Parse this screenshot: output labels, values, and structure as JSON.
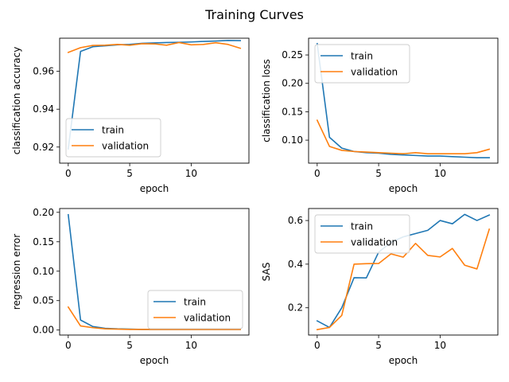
{
  "figure": {
    "title": "Training Curves"
  },
  "colors": {
    "train": "#1f77b4",
    "validation": "#ff7f0e"
  },
  "chart_data": [
    {
      "type": "line",
      "xlabel": "epoch",
      "ylabel": "classification accuracy",
      "xlim": [
        -0.7,
        14.7
      ],
      "ylim": [
        0.9115,
        0.9775
      ],
      "xticks": [
        0,
        5,
        10
      ],
      "yticks": [
        0.92,
        0.94,
        0.96
      ],
      "ytick_labels": [
        "0.92",
        "0.94",
        "0.96"
      ],
      "grid": false,
      "legend": {
        "location": "lower-left",
        "entries": [
          "train",
          "validation"
        ]
      },
      "series": [
        {
          "name": "train",
          "color": "#1f77b4",
          "x": [
            0,
            1,
            2,
            3,
            4,
            5,
            6,
            7,
            8,
            9,
            10,
            11,
            12,
            13,
            14
          ],
          "y": [
            0.919,
            0.9705,
            0.973,
            0.9735,
            0.974,
            0.9742,
            0.9748,
            0.975,
            0.9752,
            0.9753,
            0.9755,
            0.9758,
            0.976,
            0.9763,
            0.9762
          ]
        },
        {
          "name": "validation",
          "color": "#ff7f0e",
          "x": [
            0,
            1,
            2,
            3,
            4,
            5,
            6,
            7,
            8,
            9,
            10,
            11,
            12,
            13,
            14
          ],
          "y": [
            0.97,
            0.9725,
            0.9737,
            0.9738,
            0.9742,
            0.9738,
            0.9746,
            0.9745,
            0.9738,
            0.9752,
            0.974,
            0.9742,
            0.9751,
            0.9742,
            0.9722
          ]
        }
      ]
    },
    {
      "type": "line",
      "xlabel": "epoch",
      "ylabel": "classification loss",
      "xlim": [
        -0.7,
        14.7
      ],
      "ylim": [
        0.0595,
        0.2795
      ],
      "xticks": [
        0,
        5,
        10
      ],
      "yticks": [
        0.1,
        0.15,
        0.2,
        0.25
      ],
      "ytick_labels": [
        "0.10",
        "0.15",
        "0.20",
        "0.25"
      ],
      "grid": false,
      "legend": {
        "location": "upper-left",
        "entries": [
          "train",
          "validation"
        ]
      },
      "series": [
        {
          "name": "train",
          "color": "#1f77b4",
          "x": [
            0,
            1,
            2,
            3,
            4,
            5,
            6,
            7,
            8,
            9,
            10,
            11,
            12,
            13,
            14
          ],
          "y": [
            0.27,
            0.105,
            0.086,
            0.08,
            0.078,
            0.077,
            0.075,
            0.074,
            0.073,
            0.072,
            0.072,
            0.071,
            0.07,
            0.069,
            0.069
          ]
        },
        {
          "name": "validation",
          "color": "#ff7f0e",
          "x": [
            0,
            1,
            2,
            3,
            4,
            5,
            6,
            7,
            8,
            9,
            10,
            11,
            12,
            13,
            14
          ],
          "y": [
            0.135,
            0.089,
            0.082,
            0.08,
            0.079,
            0.078,
            0.077,
            0.076,
            0.078,
            0.076,
            0.076,
            0.076,
            0.076,
            0.078,
            0.084
          ]
        }
      ]
    },
    {
      "type": "line",
      "xlabel": "epoch",
      "ylabel": "regression error",
      "xlim": [
        -0.7,
        14.7
      ],
      "ylim": [
        -0.0085,
        0.2065
      ],
      "xticks": [
        0,
        5,
        10
      ],
      "yticks": [
        0.0,
        0.05,
        0.1,
        0.15,
        0.2
      ],
      "ytick_labels": [
        "0.00",
        "0.05",
        "0.10",
        "0.15",
        "0.20"
      ],
      "grid": false,
      "legend": {
        "location": "lower-right",
        "entries": [
          "train",
          "validation"
        ]
      },
      "series": [
        {
          "name": "train",
          "color": "#1f77b4",
          "x": [
            0,
            1,
            2,
            3,
            4,
            5,
            6,
            7,
            8,
            9,
            10,
            11,
            12,
            13,
            14
          ],
          "y": [
            0.196,
            0.017,
            0.006,
            0.003,
            0.002,
            0.0015,
            0.001,
            0.001,
            0.001,
            0.001,
            0.001,
            0.001,
            0.001,
            0.001,
            0.001
          ]
        },
        {
          "name": "validation",
          "color": "#ff7f0e",
          "x": [
            0,
            1,
            2,
            3,
            4,
            5,
            6,
            7,
            8,
            9,
            10,
            11,
            12,
            13,
            14
          ],
          "y": [
            0.039,
            0.007,
            0.004,
            0.002,
            0.0015,
            0.001,
            0.001,
            0.001,
            0.001,
            0.001,
            0.001,
            0.001,
            0.001,
            0.001,
            0.001
          ]
        }
      ]
    },
    {
      "type": "line",
      "xlabel": "epoch",
      "ylabel": "SAS",
      "xlim": [
        -0.7,
        14.7
      ],
      "ylim": [
        0.075,
        0.655
      ],
      "xticks": [
        0,
        5,
        10
      ],
      "yticks": [
        0.2,
        0.4,
        0.6
      ],
      "ytick_labels": [
        "0.2",
        "0.4",
        "0.6"
      ],
      "grid": false,
      "legend": {
        "location": "upper-left",
        "entries": [
          "train",
          "validation"
        ]
      },
      "series": [
        {
          "name": "train",
          "color": "#1f77b4",
          "x": [
            0,
            1,
            2,
            3,
            4,
            5,
            6,
            7,
            8,
            9,
            10,
            11,
            12,
            13,
            14
          ],
          "y": [
            0.14,
            0.11,
            0.2,
            0.338,
            0.337,
            0.455,
            0.5,
            0.525,
            0.54,
            0.555,
            0.6,
            0.585,
            0.628,
            0.6,
            0.625
          ]
        },
        {
          "name": "validation",
          "color": "#ff7f0e",
          "x": [
            0,
            1,
            2,
            3,
            4,
            5,
            6,
            7,
            8,
            9,
            10,
            11,
            12,
            13,
            14
          ],
          "y": [
            0.1,
            0.11,
            0.165,
            0.4,
            0.402,
            0.403,
            0.447,
            0.432,
            0.495,
            0.44,
            0.433,
            0.472,
            0.395,
            0.378,
            0.56
          ]
        }
      ]
    }
  ]
}
